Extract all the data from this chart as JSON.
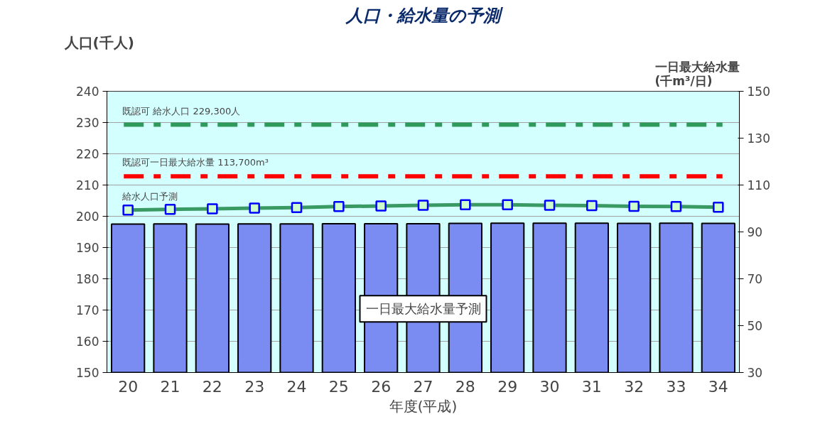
{
  "chart_data": {
    "type": "bar",
    "title": "人口・給水量の予測",
    "xlabel": "年度(平成)",
    "ylabel": "人口(千人)",
    "y2label": "一日最大給水量\n(千m³/日)",
    "categories": [
      "20",
      "21",
      "22",
      "23",
      "24",
      "25",
      "26",
      "27",
      "28",
      "29",
      "30",
      "31",
      "32",
      "33",
      "34"
    ],
    "series": [
      {
        "name": "一日最大給水量予測",
        "axis": "y2",
        "color": "#7a8cf2",
        "values": [
          93.3,
          93.4,
          93.3,
          93.4,
          93.4,
          93.5,
          93.5,
          93.5,
          93.6,
          93.7,
          93.7,
          93.7,
          93.6,
          93.7,
          93.6
        ]
      },
      {
        "name": "給水人口予測",
        "type": "line",
        "color": "#3a9a64",
        "marker": "square",
        "values": [
          202.0,
          202.2,
          202.4,
          202.6,
          202.8,
          203.1,
          203.3,
          203.5,
          203.7,
          203.7,
          203.5,
          203.4,
          203.2,
          203.1,
          202.9
        ]
      }
    ],
    "ylim": [
      150,
      240
    ],
    "yticks": [
      150,
      160,
      170,
      180,
      190,
      200,
      210,
      220,
      230,
      240
    ],
    "y2lim": [
      30,
      150
    ],
    "y2ticks": [
      30,
      50,
      70,
      90,
      110,
      130,
      150
    ],
    "ref_lines": [
      {
        "axis": "y",
        "value": 229.3,
        "label": "既認可 給水人口 229,300人",
        "color": "#2e9a5c",
        "line_style": "dashed"
      },
      {
        "axis": "y2",
        "value": 113.7,
        "label": "既認可一日最大給水量 113,700m³",
        "color": "#ff0000",
        "line_style": "dashed"
      }
    ],
    "grid": "y"
  }
}
